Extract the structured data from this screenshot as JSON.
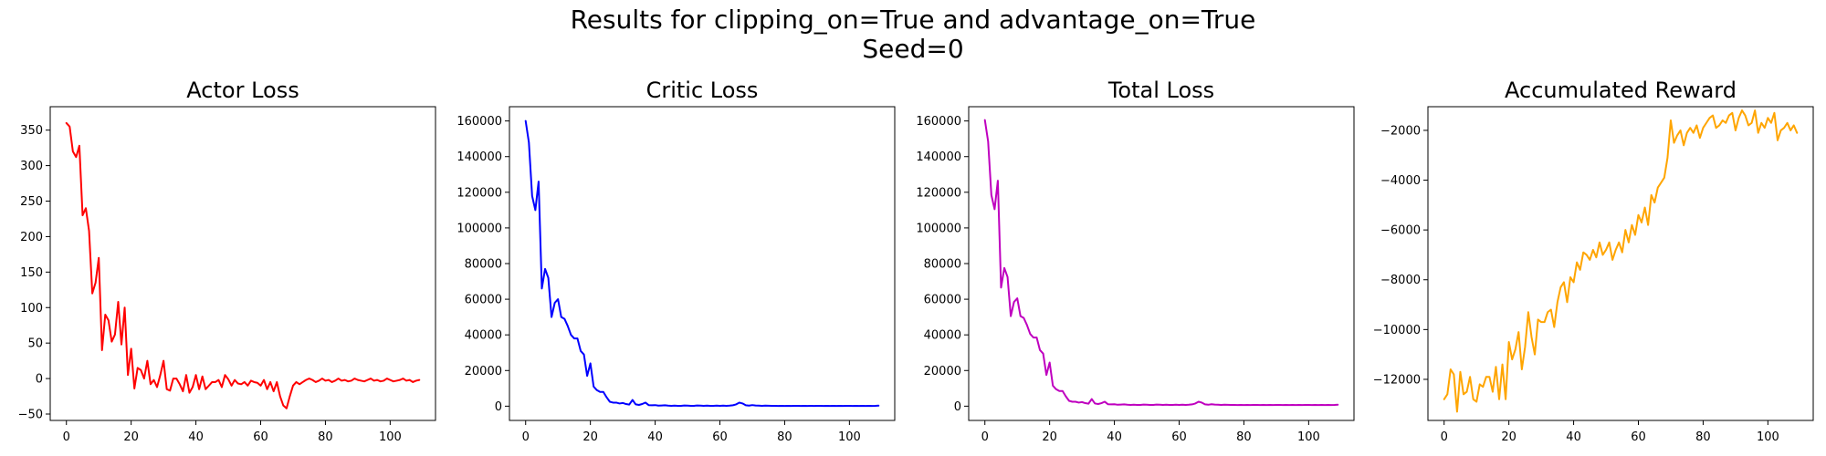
{
  "figure": {
    "title_line1": "Results for clipping_on=True and advantage_on=True",
    "title_line2": "Seed=0"
  },
  "chart_data": [
    {
      "type": "line",
      "title": "Actor Loss",
      "xlabel": "",
      "ylabel": "",
      "color": "#ff0000",
      "xlim": [
        -5,
        114
      ],
      "ylim": [
        -59,
        383
      ],
      "xticks": [
        0,
        20,
        40,
        60,
        80,
        100
      ],
      "yticks": [
        -50,
        0,
        50,
        100,
        150,
        200,
        250,
        300,
        350
      ],
      "grid": false,
      "x_start": 0,
      "values": [
        360,
        355,
        320,
        312,
        328,
        230,
        240,
        208,
        120,
        135,
        170,
        40,
        90,
        82,
        52,
        62,
        108,
        48,
        100,
        5,
        42,
        -14,
        15,
        12,
        0,
        25,
        -8,
        -2,
        -12,
        5,
        25,
        -15,
        -17,
        0,
        0,
        -8,
        -18,
        5,
        -20,
        -12,
        5,
        -15,
        3,
        -15,
        -10,
        -5,
        -5,
        -2,
        -12,
        5,
        -1,
        -10,
        -2,
        -7,
        -8,
        -5,
        -10,
        -3,
        -5,
        -6,
        -10,
        -2,
        -15,
        -5,
        -18,
        -5,
        -25,
        -38,
        -42,
        -25,
        -10,
        -5,
        -8,
        -5,
        -2,
        0,
        -2,
        -5,
        -3,
        0,
        -3,
        -2,
        -5,
        -3,
        0,
        -3,
        -2,
        -4,
        -3,
        0,
        -2,
        -3,
        -4,
        -2,
        0,
        -3,
        -2,
        -4,
        -3,
        0,
        -2,
        -4,
        -3,
        -2,
        0,
        -3,
        -2,
        -5,
        -3,
        -2
      ]
    },
    {
      "type": "line",
      "title": "Critic Loss",
      "xlabel": "",
      "ylabel": "",
      "color": "#0000ff",
      "xlim": [
        -5,
        114
      ],
      "ylim": [
        -8000,
        168000
      ],
      "xticks": [
        0,
        20,
        40,
        60,
        80,
        100
      ],
      "yticks": [
        0,
        20000,
        40000,
        60000,
        80000,
        100000,
        120000,
        140000,
        160000
      ],
      "grid": false,
      "x_start": 0,
      "values": [
        160000,
        148000,
        118000,
        110000,
        126000,
        66000,
        77000,
        72000,
        50000,
        58000,
        60000,
        50000,
        49000,
        45000,
        40000,
        38000,
        38000,
        31000,
        29000,
        17000,
        24000,
        11000,
        9000,
        8000,
        8000,
        5000,
        2500,
        2000,
        2000,
        1500,
        1800,
        1200,
        900,
        3500,
        1000,
        700,
        1200,
        2000,
        600,
        500,
        600,
        300,
        400,
        500,
        300,
        200,
        300,
        200,
        200,
        400,
        300,
        200,
        200,
        400,
        300,
        200,
        300,
        200,
        200,
        300,
        200,
        300,
        200,
        300,
        500,
        1000,
        2000,
        1500,
        500,
        300,
        600,
        400,
        300,
        200,
        300,
        250,
        200,
        200,
        150,
        200,
        150,
        200,
        150,
        200,
        200,
        150,
        200,
        150,
        200,
        150,
        200,
        200,
        150,
        200,
        150,
        200,
        150,
        200,
        150,
        200,
        200,
        150,
        200,
        150,
        200,
        150,
        200,
        150,
        200,
        300
      ]
    },
    {
      "type": "line",
      "title": "Total Loss",
      "xlabel": "",
      "ylabel": "",
      "color": "#bf00bf",
      "xlim": [
        -5,
        114
      ],
      "ylim": [
        -8000,
        168000
      ],
      "xticks": [
        0,
        20,
        40,
        60,
        80,
        100
      ],
      "yticks": [
        0,
        20000,
        40000,
        60000,
        80000,
        100000,
        120000,
        140000,
        160000
      ],
      "grid": false,
      "x_start": 0,
      "values": [
        160500,
        148500,
        118500,
        110500,
        126500,
        66500,
        77500,
        72500,
        50500,
        58500,
        60500,
        50500,
        49500,
        45500,
        40500,
        38500,
        38500,
        31500,
        29500,
        17500,
        24500,
        11500,
        9500,
        8500,
        8500,
        5500,
        3000,
        2500,
        2500,
        2000,
        2300,
        1700,
        1400,
        4000,
        1500,
        1200,
        1700,
        2500,
        1100,
        1000,
        1100,
        800,
        900,
        1000,
        800,
        700,
        800,
        700,
        700,
        900,
        800,
        700,
        700,
        900,
        800,
        700,
        800,
        700,
        700,
        800,
        700,
        800,
        700,
        800,
        1000,
        1500,
        2500,
        2000,
        1000,
        800,
        1100,
        900,
        800,
        700,
        800,
        750,
        700,
        700,
        650,
        700,
        650,
        700,
        650,
        700,
        700,
        650,
        700,
        650,
        700,
        650,
        700,
        700,
        650,
        700,
        650,
        700,
        650,
        700,
        650,
        700,
        700,
        650,
        700,
        650,
        700,
        650,
        700,
        650,
        700,
        800
      ]
    },
    {
      "type": "line",
      "title": "Accumulated Reward",
      "xlabel": "",
      "ylabel": "",
      "color": "#ffa500",
      "xlim": [
        -5,
        114
      ],
      "ylim": [
        -13650,
        -1050
      ],
      "xticks": [
        0,
        20,
        40,
        60,
        80,
        100
      ],
      "yticks": [
        -12000,
        -10000,
        -8000,
        -6000,
        -4000,
        -2000
      ],
      "grid": false,
      "x_start": 0,
      "values": [
        -12800,
        -12600,
        -11600,
        -11800,
        -13300,
        -11700,
        -12600,
        -12500,
        -11900,
        -12800,
        -12900,
        -12200,
        -12300,
        -11900,
        -11900,
        -12500,
        -11500,
        -12800,
        -11400,
        -12800,
        -10500,
        -11200,
        -10800,
        -10100,
        -11600,
        -10700,
        -9300,
        -10300,
        -11000,
        -9600,
        -9700,
        -9700,
        -9300,
        -9200,
        -9900,
        -8900,
        -8300,
        -8100,
        -8900,
        -7900,
        -8100,
        -7300,
        -7600,
        -6900,
        -7000,
        -7200,
        -6800,
        -7100,
        -6500,
        -7000,
        -6800,
        -6500,
        -7200,
        -6800,
        -6500,
        -6900,
        -6000,
        -6500,
        -5800,
        -6200,
        -5400,
        -5700,
        -5100,
        -5800,
        -4600,
        -4900,
        -4300,
        -4100,
        -3900,
        -3100,
        -1600,
        -2500,
        -2200,
        -2000,
        -2600,
        -2100,
        -1900,
        -2100,
        -1800,
        -2300,
        -1900,
        -1700,
        -1500,
        -1400,
        -1900,
        -1800,
        -1600,
        -1700,
        -1400,
        -1300,
        -2000,
        -1500,
        -1200,
        -1400,
        -1800,
        -1700,
        -1200,
        -2100,
        -1700,
        -1900,
        -1500,
        -1700,
        -1300,
        -2400,
        -2000,
        -1900,
        -1700,
        -2000,
        -1800,
        -2100
      ]
    }
  ]
}
